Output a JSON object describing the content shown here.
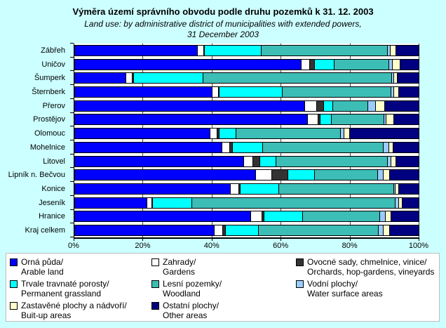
{
  "title": "Výměra území správního obvodu podle druhu pozemků k 31. 12. 2003",
  "subtitle_line1": "Land use: by administrative district of municipalities with extended powers,",
  "subtitle_line2": "31 December 2003",
  "colors": {
    "background": "#CCFFFF",
    "plot_background": "#FFFFFF",
    "axis": "#000000"
  },
  "chart_data": {
    "type": "bar",
    "variant": "horizontal-stacked",
    "unit": "percent",
    "xlim": [
      0,
      100
    ],
    "x_ticks": [
      "0%",
      "20%",
      "40%",
      "60%",
      "80%",
      "100%"
    ],
    "grid": true,
    "legend_position": "bottom",
    "categories": [
      "Zábřeh",
      "Uničov",
      "Šumperk",
      "Šternberk",
      "Přerov",
      "Prostějov",
      "Olomouc",
      "Mohelnice",
      "Litovel",
      "Lipník n. Bečvou",
      "Konice",
      "Jeseník",
      "Hranice",
      "Kraj celkem"
    ],
    "series": [
      {
        "key": "arable",
        "name_cs": "Orná půda/",
        "name_en": "Arable land",
        "color": "#0000FF",
        "values": [
          35.5,
          65.8,
          14.7,
          39.7,
          66.8,
          67.5,
          39.1,
          42.7,
          49.0,
          52.5,
          45.2,
          20.8,
          51.1,
          40.5
        ]
      },
      {
        "key": "gardens",
        "name_cs": "Zahrady/",
        "name_en": "Gardens",
        "color": "#FFFFFF",
        "values": [
          1.8,
          2.4,
          1.8,
          1.9,
          3.5,
          3.1,
          2.2,
          2.2,
          2.7,
          4.6,
          2.4,
          1.4,
          3.2,
          2.4
        ]
      },
      {
        "key": "orchards",
        "name_cs": "Ovocné sady, chmelnice, vinice/",
        "name_en": "Orchards, hop-gardens, vineyards",
        "color": "#333333",
        "values": [
          0.2,
          1.4,
          0.5,
          0.3,
          1.9,
          0.7,
          0.5,
          0.9,
          2.0,
          4.7,
          0.3,
          0.1,
          0.7,
          0.8
        ]
      },
      {
        "key": "grassland",
        "name_cs": "Trvale travnaté porosty/",
        "name_en": "Permanent grassland",
        "color": "#00FFFF",
        "values": [
          16.5,
          5.8,
          20.1,
          18.4,
          2.7,
          3.2,
          4.9,
          8.7,
          4.7,
          7.7,
          11.3,
          11.5,
          11.2,
          9.6
        ]
      },
      {
        "key": "woodland",
        "name_cs": "Lesní pozemky/",
        "name_en": "Woodland",
        "color": "#3CBDB5",
        "values": [
          36.9,
          15.9,
          54.9,
          31.6,
          10.3,
          15.2,
          30.4,
          35.1,
          32.5,
          18.5,
          33.4,
          59.2,
          22.4,
          34.8
        ]
      },
      {
        "key": "water",
        "name_cs": "Vodní plochy/",
        "name_en": "Water surface areas",
        "color": "#99CCFF",
        "values": [
          0.8,
          1.0,
          0.7,
          0.7,
          2.2,
          0.7,
          1.0,
          1.6,
          1.0,
          1.6,
          0.5,
          1.0,
          1.6,
          1.6
        ]
      },
      {
        "key": "builtup",
        "name_cs": "Zastavěné plochy a nádvoří/",
        "name_en": "Buit-up areas",
        "color": "#FFFFCC",
        "values": [
          1.6,
          2.2,
          1.0,
          1.4,
          2.7,
          2.3,
          1.8,
          1.2,
          1.4,
          1.8,
          1.0,
          1.0,
          1.6,
          1.8
        ]
      },
      {
        "key": "other",
        "name_cs": "Ostatní plochy/",
        "name_en": "Other areas",
        "color": "#000080",
        "values": [
          6.7,
          5.5,
          6.3,
          6.0,
          9.9,
          7.3,
          20.1,
          7.6,
          6.7,
          8.6,
          5.9,
          5.0,
          8.2,
          8.5
        ]
      }
    ]
  },
  "legend": {
    "columns": [
      [
        0,
        3,
        6
      ],
      [
        1,
        4,
        7
      ],
      [
        2,
        5
      ]
    ]
  }
}
